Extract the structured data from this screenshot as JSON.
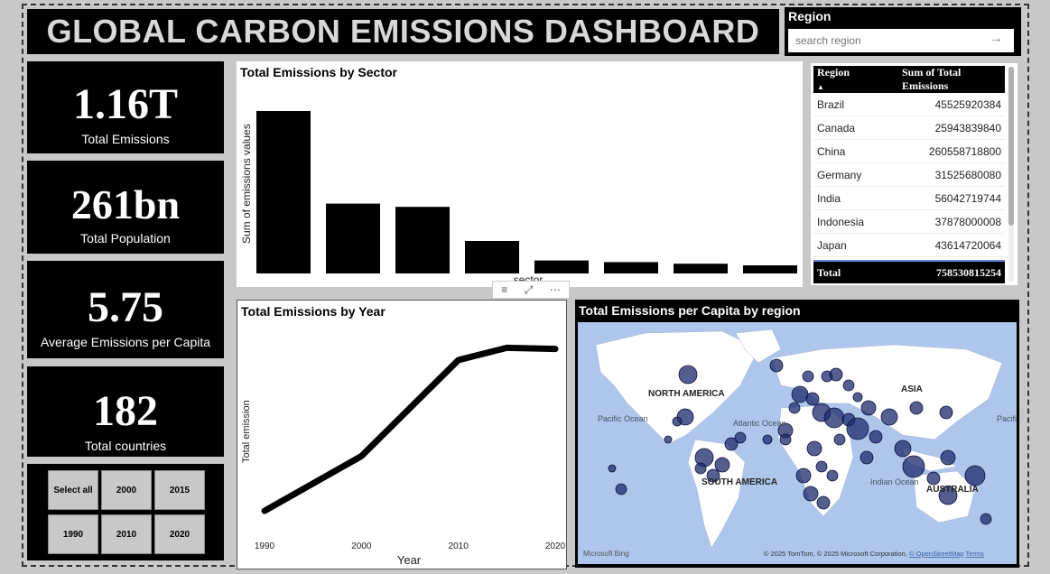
{
  "header": {
    "title": "GLOBAL CARBON EMISSIONS DASHBOARD"
  },
  "region_filter": {
    "label": "Region",
    "placeholder": "search region"
  },
  "kpis": [
    {
      "value": "1.16T",
      "label": "Total Emissions"
    },
    {
      "value": "261bn",
      "label": "Total  Population"
    },
    {
      "value": "5.75",
      "label": "Average Emissions per Capita"
    },
    {
      "value": "182",
      "label": "Total countries"
    }
  ],
  "year_slicer": {
    "buttons": [
      "Select all",
      "2000",
      "2015",
      "1990",
      "2010",
      "2020"
    ]
  },
  "sector_chart": {
    "title": "Total Emissions by Sector",
    "chart_data": {
      "type": "bar",
      "ylabel": "Sum of emissions values",
      "xlabel": "sector",
      "values": [
        100,
        43,
        41,
        20,
        8,
        7,
        6,
        5
      ]
    }
  },
  "visual_toolbar": {
    "icons": [
      "filter-icon",
      "focus-mode-icon",
      "more-options-icon"
    ]
  },
  "year_chart": {
    "title": "Total Emissions by Year",
    "chart_data": {
      "type": "line",
      "xlabel": "Year",
      "ylabel": "Total emission",
      "x": [
        1990,
        2000,
        2010,
        2015,
        2020
      ],
      "y": [
        4,
        53,
        139,
        150,
        149
      ],
      "xticks": [
        "1990",
        "2000",
        "2010",
        "2020"
      ]
    }
  },
  "region_table": {
    "columns": [
      "Region",
      "Sum of Total Emissions"
    ],
    "rows": [
      [
        "Brazil",
        "45525920384"
      ],
      [
        "Canada",
        "25943839840"
      ],
      [
        "China",
        "260558718800"
      ],
      [
        "Germany",
        "31525680080"
      ],
      [
        "India",
        "56042719744"
      ],
      [
        "Indonesia",
        "37878000008"
      ],
      [
        "Japan",
        "43614720064"
      ]
    ],
    "total_label": "Total",
    "total_value": "758530815254"
  },
  "map": {
    "title": "Total Emissions per Capita by region",
    "labels": [
      "NORTH AMERICA",
      "SOUTH AMERICA",
      "ASIA",
      "AUSTRALIA",
      "Pacific Ocean",
      "Atlantic Ocean",
      "Indian Ocean",
      "Pacific Ocean"
    ],
    "attribution": "© 2025 TomTom, © 2025 Microsoft Corporation,",
    "osm_link": "© OpenStreetMap",
    "terms_link": "Terms",
    "bing_logo": "Microsoft Bing"
  },
  "colors": {
    "background": "#c8c8c8",
    "panel": "#000000",
    "bubble": "#1b2a6b",
    "ocean": "#aec6ec",
    "land": "#ffffff"
  }
}
